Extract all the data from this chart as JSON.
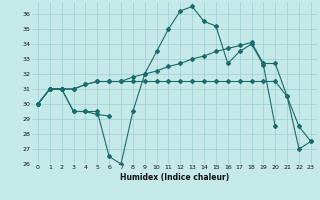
{
  "xlabel": "Humidex (Indice chaleur)",
  "background_color": "#c5e8e8",
  "grid_color": "#9ecece",
  "line_color": "#1a6b6b",
  "xlim": [
    -0.5,
    23.5
  ],
  "ylim": [
    26,
    36.8
  ],
  "xticks": [
    0,
    1,
    2,
    3,
    4,
    5,
    6,
    7,
    8,
    9,
    10,
    11,
    12,
    13,
    14,
    15,
    16,
    17,
    18,
    19,
    20,
    21,
    22,
    23
  ],
  "yticks": [
    26,
    27,
    28,
    29,
    30,
    31,
    32,
    33,
    34,
    35,
    36
  ],
  "lines": [
    {
      "x": [
        0,
        1,
        2,
        3,
        4,
        5,
        6,
        7,
        8,
        9,
        10,
        11,
        12,
        13,
        14,
        15,
        16,
        17,
        18,
        19,
        20
      ],
      "y": [
        30,
        31,
        31,
        29.5,
        29.5,
        29.5,
        26.5,
        26,
        29.5,
        32,
        33.5,
        35,
        36.2,
        36.5,
        35.5,
        35.2,
        32.7,
        33.5,
        34,
        32.6,
        28.5
      ]
    },
    {
      "x": [
        0,
        1,
        2,
        3,
        4,
        5,
        6
      ],
      "y": [
        30,
        31,
        31,
        29.5,
        29.5,
        29.3,
        29.2
      ]
    },
    {
      "x": [
        0,
        1,
        2,
        3,
        4,
        5,
        6,
        7,
        8,
        9,
        10,
        11,
        12,
        13,
        14,
        15,
        16,
        17,
        18,
        19,
        20,
        21,
        22,
        23
      ],
      "y": [
        30,
        31,
        31,
        31,
        31.3,
        31.5,
        31.5,
        31.5,
        31.8,
        32,
        32.2,
        32.5,
        32.7,
        33,
        33.2,
        33.5,
        33.7,
        33.9,
        34.1,
        32.7,
        32.7,
        30.5,
        27,
        27.5
      ]
    },
    {
      "x": [
        0,
        1,
        2,
        3,
        4,
        5,
        6,
        7,
        8,
        9,
        10,
        11,
        12,
        13,
        14,
        15,
        16,
        17,
        18,
        19,
        20,
        21,
        22,
        23
      ],
      "y": [
        30,
        31,
        31,
        31,
        31.3,
        31.5,
        31.5,
        31.5,
        31.5,
        31.5,
        31.5,
        31.5,
        31.5,
        31.5,
        31.5,
        31.5,
        31.5,
        31.5,
        31.5,
        31.5,
        31.5,
        30.5,
        28.5,
        27.5
      ]
    }
  ]
}
